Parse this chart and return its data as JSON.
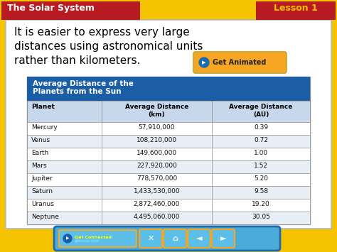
{
  "title_bar_text": "The Solar System",
  "lesson_text": "Lesson 1",
  "body_text_line1": "It is easier to express very large",
  "body_text_line2": "distances using astronomical units",
  "body_text_line3": "rather than kilometers.",
  "table_title_line1": "Average Distance of the",
  "table_title_line2": "Planets from the Sun",
  "col_headers": [
    "Planet",
    "Average Distance\n(km)",
    "Average Distance\n(AU)"
  ],
  "planets": [
    "Mercury",
    "Venus",
    "Earth",
    "Mars",
    "Jupiter",
    "Saturn",
    "Uranus",
    "Neptune"
  ],
  "distances_km": [
    "57,910,000",
    "108,210,000",
    "149,600,000",
    "227,920,000",
    "778,570,000",
    "1,433,530,000",
    "2,872,460,000",
    "4,495,060,000"
  ],
  "distances_au": [
    "0.39",
    "0.72",
    "1.00",
    "1.52",
    "5.20",
    "9.58",
    "19.20",
    "30.05"
  ],
  "bg_color": "#F5C300",
  "header_red_bg": "#B81C22",
  "header_red_text": "#FFFFFF",
  "lesson_text_color": "#F5C300",
  "table_header_bg": "#1B5EA6",
  "table_header_text": "#FFFFFF",
  "table_col_header_bg": "#C8D8EC",
  "table_border_color": "#888888",
  "table_row_bg_odd": "#FFFFFF",
  "table_row_bg_even": "#E8EEF5",
  "inner_bg": "#FFFFFF",
  "body_text_color": "#000000",
  "animated_btn_bg": "#F5A623",
  "toolbar_bg": "#4AABDB",
  "toolbar_border": "#2068B0"
}
